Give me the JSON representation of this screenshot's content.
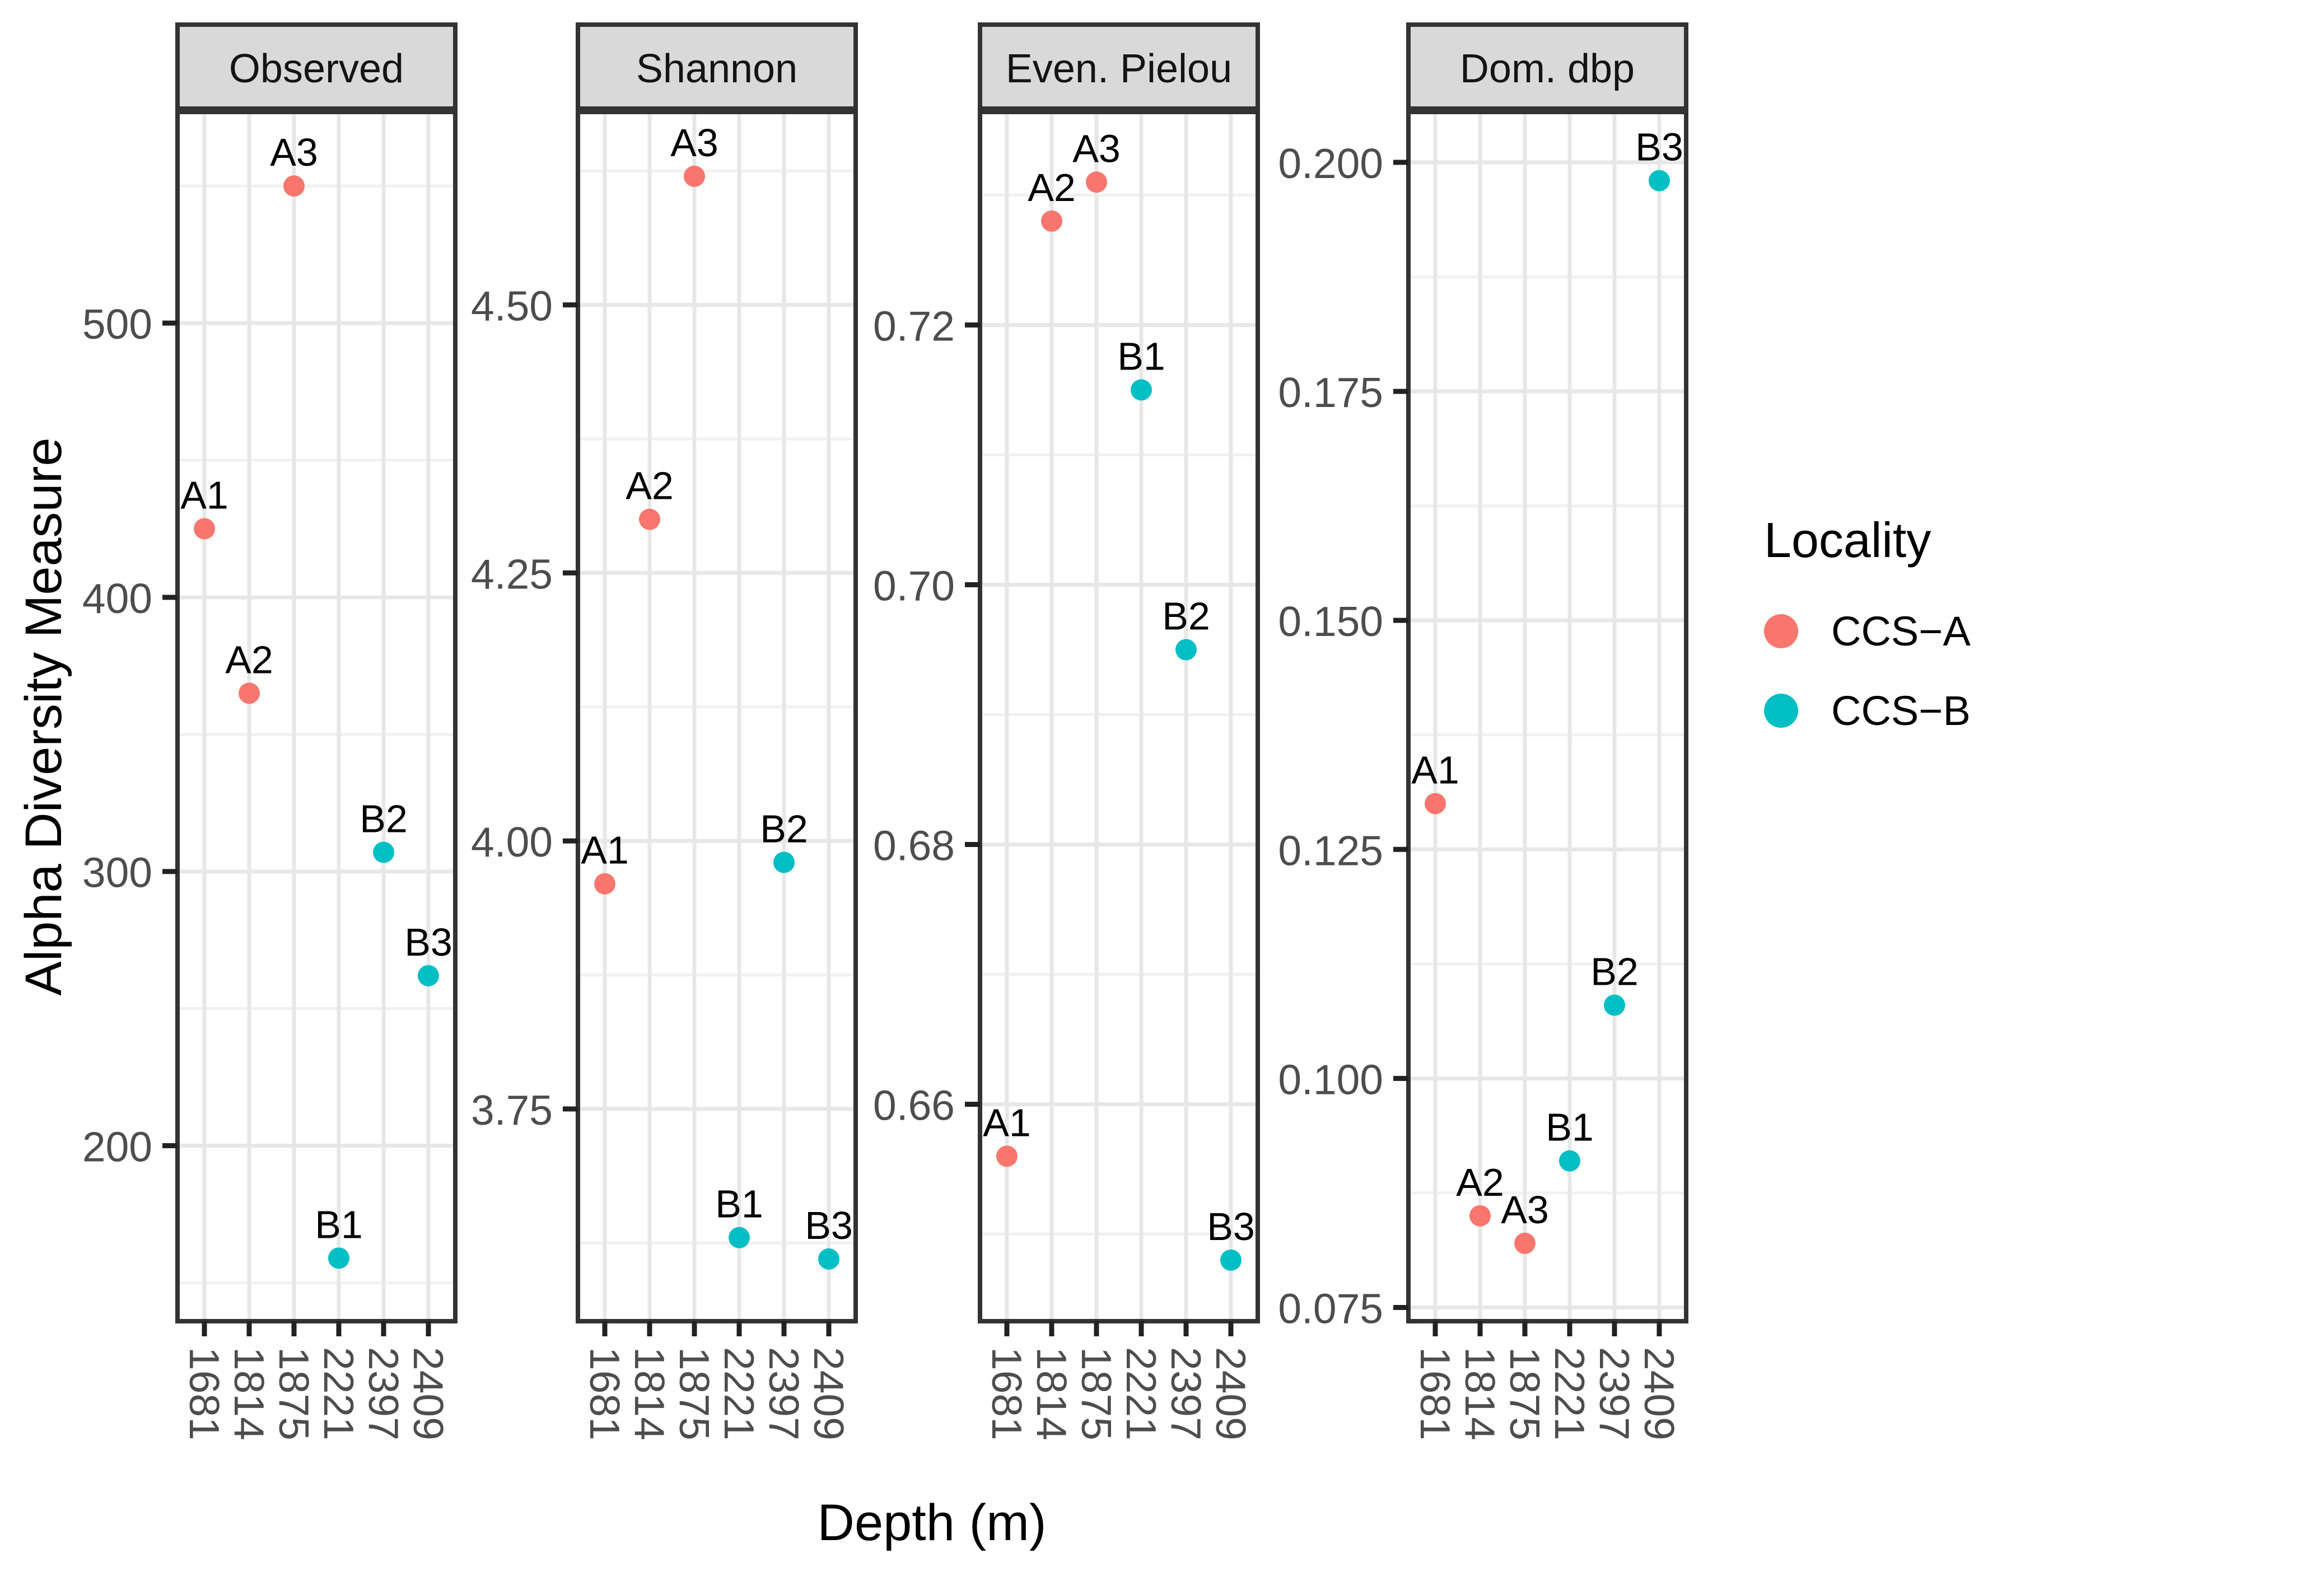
{
  "figure": {
    "x_axis_title": "Depth (m)",
    "y_axis_title": "Alpha Diversity Measure",
    "x_categories": [
      "1681",
      "1814",
      "1875",
      "2221",
      "2397",
      "2409"
    ],
    "legend": {
      "title": "Locality",
      "items": [
        {
          "label": "CCS−A",
          "color": "#F8766D"
        },
        {
          "label": "CCS−B",
          "color": "#00BFC4"
        }
      ]
    }
  },
  "chart_data": [
    {
      "type": "scatter",
      "title": "Observed",
      "xlabel": "Depth (m)",
      "ylabel": "Alpha Diversity Measure",
      "categories": [
        "1681",
        "1814",
        "1875",
        "2221",
        "2397",
        "2409"
      ],
      "ylim": [
        136,
        577
      ],
      "yticks": [
        200,
        300,
        400,
        500
      ],
      "ytick_labels": [
        "200",
        "300",
        "400",
        "500"
      ],
      "points": [
        {
          "label": "A1",
          "x": "1681",
          "y": 425,
          "group": "CCS−A"
        },
        {
          "label": "A2",
          "x": "1814",
          "y": 365,
          "group": "CCS−A"
        },
        {
          "label": "A3",
          "x": "1875",
          "y": 550,
          "group": "CCS−A"
        },
        {
          "label": "B1",
          "x": "2221",
          "y": 159,
          "group": "CCS−B"
        },
        {
          "label": "B2",
          "x": "2397",
          "y": 307,
          "group": "CCS−B"
        },
        {
          "label": "B3",
          "x": "2409",
          "y": 262,
          "group": "CCS−B"
        }
      ]
    },
    {
      "type": "scatter",
      "title": "Shannon",
      "xlabel": "Depth (m)",
      "ylabel": "Alpha Diversity Measure",
      "categories": [
        "1681",
        "1814",
        "1875",
        "2221",
        "2397",
        "2409"
      ],
      "ylim": [
        3.552,
        4.68
      ],
      "yticks": [
        3.75,
        4.0,
        4.25,
        4.5
      ],
      "ytick_labels": [
        "3.75",
        "4.00",
        "4.25",
        "4.50"
      ],
      "points": [
        {
          "label": "A1",
          "x": "1681",
          "y": 3.96,
          "group": "CCS−A"
        },
        {
          "label": "A2",
          "x": "1814",
          "y": 4.3,
          "group": "CCS−A"
        },
        {
          "label": "A3",
          "x": "1875",
          "y": 4.62,
          "group": "CCS−A"
        },
        {
          "label": "B1",
          "x": "2221",
          "y": 3.63,
          "group": "CCS−B"
        },
        {
          "label": "B2",
          "x": "2397",
          "y": 3.98,
          "group": "CCS−B"
        },
        {
          "label": "B3",
          "x": "2409",
          "y": 3.61,
          "group": "CCS−B"
        }
      ]
    },
    {
      "type": "scatter",
      "title": "Even. Pielou",
      "xlabel": "Depth (m)",
      "ylabel": "Alpha Diversity Measure",
      "categories": [
        "1681",
        "1814",
        "1875",
        "2221",
        "2397",
        "2409"
      ],
      "ylim": [
        0.6433,
        0.7364
      ],
      "yticks": [
        0.66,
        0.68,
        0.7,
        0.72
      ],
      "ytick_labels": [
        "0.66",
        "0.68",
        "0.70",
        "0.72"
      ],
      "points": [
        {
          "label": "A1",
          "x": "1681",
          "y": 0.656,
          "group": "CCS−A"
        },
        {
          "label": "A2",
          "x": "1814",
          "y": 0.728,
          "group": "CCS−A"
        },
        {
          "label": "A3",
          "x": "1875",
          "y": 0.731,
          "group": "CCS−A"
        },
        {
          "label": "B1",
          "x": "2221",
          "y": 0.715,
          "group": "CCS−B"
        },
        {
          "label": "B2",
          "x": "2397",
          "y": 0.695,
          "group": "CCS−B"
        },
        {
          "label": "B3",
          "x": "2409",
          "y": 0.648,
          "group": "CCS−B"
        }
      ]
    },
    {
      "type": "scatter",
      "title": "Dom. dbp",
      "xlabel": "Depth (m)",
      "ylabel": "Alpha Diversity Measure",
      "categories": [
        "1681",
        "1814",
        "1875",
        "2221",
        "2397",
        "2409"
      ],
      "ylim": [
        0.0735,
        0.2055
      ],
      "yticks": [
        0.075,
        0.1,
        0.125,
        0.15,
        0.175,
        0.2
      ],
      "ytick_labels": [
        "0.075",
        "0.100",
        "0.125",
        "0.150",
        "0.175",
        "0.200"
      ],
      "points": [
        {
          "label": "A1",
          "x": "1681",
          "y": 0.13,
          "group": "CCS−A"
        },
        {
          "label": "A2",
          "x": "1814",
          "y": 0.085,
          "group": "CCS−A"
        },
        {
          "label": "A3",
          "x": "1875",
          "y": 0.082,
          "group": "CCS−A"
        },
        {
          "label": "B1",
          "x": "2221",
          "y": 0.091,
          "group": "CCS−B"
        },
        {
          "label": "B2",
          "x": "2397",
          "y": 0.108,
          "group": "CCS−B"
        },
        {
          "label": "B3",
          "x": "2409",
          "y": 0.198,
          "group": "CCS−B"
        }
      ]
    }
  ]
}
